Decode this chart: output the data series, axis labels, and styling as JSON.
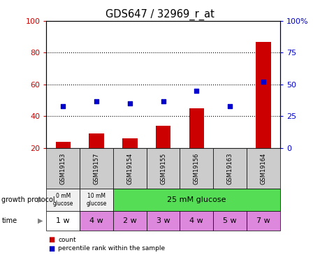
{
  "title": "GDS647 / 32969_r_at",
  "samples": [
    "GSM19153",
    "GSM19157",
    "GSM19154",
    "GSM19155",
    "GSM19156",
    "GSM19163",
    "GSM19164"
  ],
  "counts": [
    24,
    29,
    26,
    34,
    45,
    20,
    87
  ],
  "percentiles": [
    33,
    37,
    35,
    37,
    45,
    33,
    52
  ],
  "left_ylim": [
    20,
    100
  ],
  "right_ylim": [
    0,
    100
  ],
  "left_yticks": [
    20,
    40,
    60,
    80,
    100
  ],
  "right_yticks": [
    0,
    25,
    50,
    75,
    100
  ],
  "right_yticklabels": [
    "0",
    "25",
    "50",
    "75",
    "100%"
  ],
  "bar_color": "#cc0000",
  "dot_color": "#0000cc",
  "left_tick_color": "#cc0000",
  "right_tick_color": "#0000cc",
  "time_labels": [
    "1 w",
    "4 w",
    "2 w",
    "3 w",
    "4 w",
    "5 w",
    "7 w"
  ],
  "time_colors_map": [
    "white",
    "#dd88dd",
    "#dd88dd",
    "#dd88dd",
    "#dd88dd",
    "#dd88dd",
    "#dd88dd"
  ],
  "sample_bg_color": "#cccccc",
  "legend_count_color": "#cc0000",
  "legend_pct_color": "#0000cc",
  "green_color": "#55dd55",
  "magenta_color": "#dd88dd"
}
